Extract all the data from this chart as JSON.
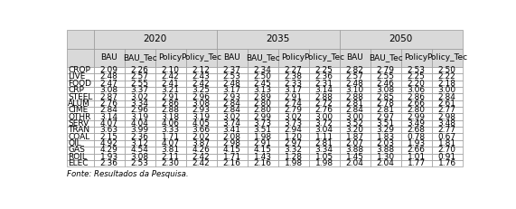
{
  "rows": [
    [
      "CROP",
      "2.09",
      "2.26",
      "2.10",
      "2.12",
      "2.37",
      "2.34",
      "2.27",
      "2.25",
      "2.82",
      "2.79",
      "2.53",
      "2.50"
    ],
    [
      "LIVE",
      "2.48",
      "2.57",
      "2.42",
      "2.43",
      "2.53",
      "2.50",
      "2.38",
      "2.36",
      "2.57",
      "2.55",
      "2.25",
      "2.22"
    ],
    [
      "FOOD",
      "2.47",
      "2.55",
      "2.41",
      "2.42",
      "2.48",
      "2.45",
      "2.33",
      "2.31",
      "2.48",
      "2.46",
      "2.20",
      "2.18"
    ],
    [
      "CRP",
      "3.08",
      "3.37",
      "3.21",
      "3.25",
      "3.17",
      "3.13",
      "3.17",
      "3.14",
      "3.10",
      "3.08",
      "3.06",
      "3.00"
    ],
    [
      "STEEL",
      "2.87",
      "3.02",
      "2.91",
      "2.96",
      "2.93",
      "2.89",
      "2.91",
      "2.88",
      "2.88",
      "2.85",
      "2.86",
      "2.84"
    ],
    [
      "ALUM",
      "2.76",
      "3.34",
      "2.86",
      "3.08",
      "2.84",
      "2.80",
      "2.74",
      "2.72",
      "2.81",
      "2.78",
      "2.66",
      "2.61"
    ],
    [
      "CIME",
      "2.84",
      "2.96",
      "2.88",
      "2.93",
      "2.84",
      "2.80",
      "2.79",
      "2.76",
      "2.84",
      "2.81",
      "2.80",
      "2.77"
    ],
    [
      "OTHR",
      "3.14",
      "3.19",
      "3.18",
      "3.19",
      "3.02",
      "2.99",
      "3.02",
      "3.00",
      "3.00",
      "2.97",
      "2.99",
      "2.98"
    ],
    [
      "SERV",
      "4.07",
      "4.04",
      "4.06",
      "4.05",
      "3.74",
      "3.73",
      "3.73",
      "3.72",
      "3.52",
      "3.51",
      "3.49",
      "3.48"
    ],
    [
      "TRAN",
      "3.63",
      "3.99",
      "3.33",
      "3.66",
      "3.41",
      "3.51",
      "2.94",
      "3.04",
      "3.20",
      "3.29",
      "2.68",
      "2.77"
    ],
    [
      "COAL",
      "2.15",
      "2.36",
      "1.71",
      "2.02",
      "2.08",
      "1.98",
      "1.20",
      "1.11",
      "1.87",
      "1.83",
      "0.78",
      "0.67"
    ],
    [
      "OIL",
      "4.92",
      "3.12",
      "4.07",
      "3.87",
      "2.98",
      "2.91",
      "2.97",
      "2.81",
      "2.07",
      "2.03",
      "1.93",
      "1.81"
    ],
    [
      "GAS",
      "4.29",
      "4.54",
      "3.81",
      "4.26",
      "4.15",
      "4.15",
      "3.32",
      "3.34",
      "3.88",
      "3.88",
      "2.66",
      "2.70"
    ],
    [
      "ROIL",
      "1.93",
      "3.08",
      "2.11",
      "2.42",
      "1.71",
      "1.43",
      "1.28",
      "1.05",
      "1.45",
      "1.30",
      "1.01",
      "0.91"
    ],
    [
      "ELEC",
      "2.36",
      "2.53",
      "2.30",
      "2.42",
      "2.16",
      "2.16",
      "1.98",
      "1.98",
      "2.04",
      "2.04",
      "1.77",
      "1.76"
    ]
  ],
  "col_groups": [
    "2020",
    "2035",
    "2050"
  ],
  "sub_cols": [
    "BAU",
    "BAU_Tec",
    "Policy",
    "Policy_Tec"
  ],
  "footer": "Fonte: Resultados da Pesquisa.",
  "header_bg": "#d9d9d9",
  "subheader_bg": "#d9d9d9",
  "border_color": "#999999",
  "text_color": "#000000",
  "font_size": 6.5,
  "header_font_size": 7.5
}
